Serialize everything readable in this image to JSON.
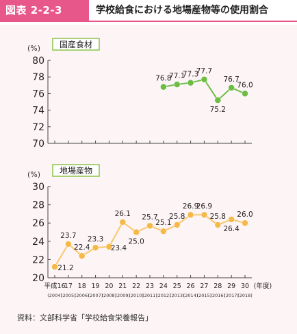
{
  "figure": {
    "number": "図表 2-2-3",
    "title": "学校給食における地場産物等の使用割合",
    "source": "資料：文部科学省「学校給食栄養報告」"
  },
  "colors": {
    "accent": "#e8578a",
    "panel_label_bg": "#8bc34a",
    "domestic_line": "#6dbd45",
    "local_line": "#f7c76b",
    "local_marker": "#f5b94a"
  },
  "x_axis": {
    "unit_label": "(年度)",
    "ticks": [
      {
        "top": "平成16",
        "bottom": "(2004)"
      },
      {
        "top": "17",
        "bottom": "(2005)"
      },
      {
        "top": "18",
        "bottom": "(2006)"
      },
      {
        "top": "19",
        "bottom": "(2007)"
      },
      {
        "top": "20",
        "bottom": "(2008)"
      },
      {
        "top": "21",
        "bottom": "(2009)"
      },
      {
        "top": "22",
        "bottom": "(2010)"
      },
      {
        "top": "23",
        "bottom": "(2011)"
      },
      {
        "top": "24",
        "bottom": "(2012)"
      },
      {
        "top": "25",
        "bottom": "(2013)"
      },
      {
        "top": "26",
        "bottom": "(2014)"
      },
      {
        "top": "27",
        "bottom": "(2015)"
      },
      {
        "top": "28",
        "bottom": "(2016)"
      },
      {
        "top": "29",
        "bottom": "(2017)"
      },
      {
        "top": "30",
        "bottom": "(2018)"
      }
    ]
  },
  "chart_data": [
    {
      "type": "line",
      "title": "国産食材",
      "ylabel": "(%)",
      "ylim": [
        70,
        80
      ],
      "yticks": [
        70,
        72,
        74,
        76,
        78,
        80
      ],
      "x": [
        24,
        25,
        26,
        27,
        28,
        29,
        30
      ],
      "values": [
        76.8,
        77.1,
        77.3,
        77.7,
        75.2,
        76.7,
        76.0
      ],
      "labels": [
        "76.8",
        "77.1",
        "77.3",
        "77.7",
        "75.2",
        "76.7",
        "76.0"
      ],
      "grid": false
    },
    {
      "type": "line",
      "title": "地場産物",
      "ylabel": "(%)",
      "ylim": [
        20,
        30
      ],
      "yticks": [
        20,
        22,
        24,
        26,
        28,
        30
      ],
      "x": [
        16,
        17,
        18,
        19,
        20,
        21,
        22,
        23,
        24,
        25,
        26,
        27,
        28,
        29,
        30
      ],
      "values": [
        21.2,
        23.7,
        22.4,
        23.3,
        23.4,
        26.1,
        25.0,
        25.7,
        25.1,
        25.8,
        26.9,
        26.9,
        25.8,
        26.4,
        26.0
      ],
      "labels": [
        "21.2",
        "23.7",
        "22.4",
        "23.3",
        "23.4",
        "26.1",
        "25.0",
        "25.7",
        "25.1",
        "25.8",
        "26.9",
        "26.9",
        "25.8",
        "26.4",
        "26.0"
      ],
      "grid": false
    }
  ]
}
